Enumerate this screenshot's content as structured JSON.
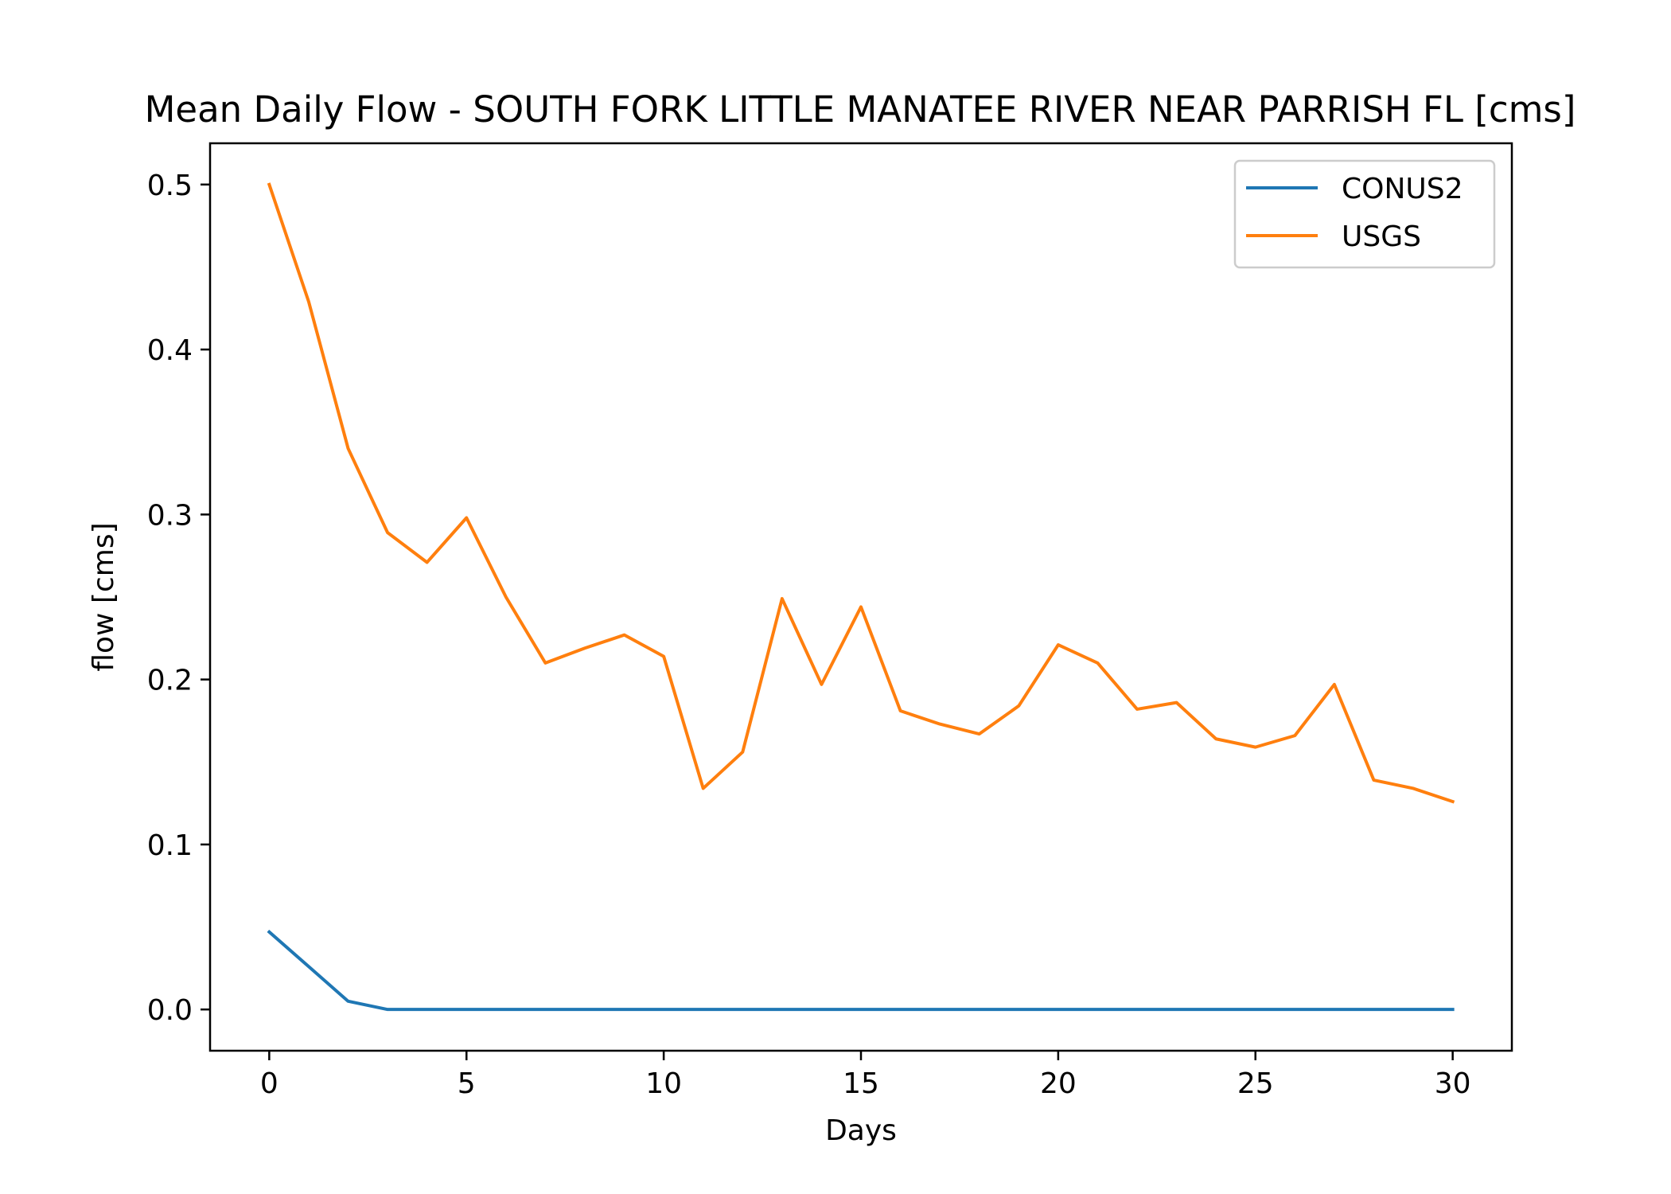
{
  "chart_data": {
    "type": "line",
    "title": "Mean Daily Flow - SOUTH FORK LITTLE MANATEE RIVER NEAR PARRISH FL [cms]",
    "xlabel": "Days",
    "ylabel": "flow [cms]",
    "xlim": [
      -1.5,
      31.5
    ],
    "ylim": [
      -0.025,
      0.525
    ],
    "xticks": [
      0,
      5,
      10,
      15,
      20,
      25,
      30
    ],
    "xtick_labels": [
      "0",
      "5",
      "10",
      "15",
      "20",
      "25",
      "30"
    ],
    "yticks": [
      0.0,
      0.1,
      0.2,
      0.3,
      0.4,
      0.5
    ],
    "ytick_labels": [
      "0.0",
      "0.1",
      "0.2",
      "0.3",
      "0.4",
      "0.5"
    ],
    "grid": false,
    "legend_position": "top-right",
    "x": [
      0,
      1,
      2,
      3,
      4,
      5,
      6,
      7,
      8,
      9,
      10,
      11,
      12,
      13,
      14,
      15,
      16,
      17,
      18,
      19,
      20,
      21,
      22,
      23,
      24,
      25,
      26,
      27,
      28,
      29,
      30
    ],
    "series": [
      {
        "name": "CONUS2",
        "color": "#1f77b4",
        "values": [
          0.047,
          0.026,
          0.005,
          0.0,
          0.0,
          0.0,
          0.0,
          0.0,
          0.0,
          0.0,
          0.0,
          0.0,
          0.0,
          0.0,
          0.0,
          0.0,
          0.0,
          0.0,
          0.0,
          0.0,
          0.0,
          0.0,
          0.0,
          0.0,
          0.0,
          0.0,
          0.0,
          0.0,
          0.0,
          0.0,
          0.0
        ]
      },
      {
        "name": "USGS",
        "color": "#ff7f0e",
        "values": [
          0.5,
          0.429,
          0.34,
          0.289,
          0.271,
          0.298,
          0.25,
          0.21,
          0.219,
          0.227,
          0.214,
          0.134,
          0.156,
          0.249,
          0.197,
          0.244,
          0.181,
          0.173,
          0.167,
          0.184,
          0.221,
          0.21,
          0.182,
          0.186,
          0.164,
          0.159,
          0.166,
          0.197,
          0.139,
          0.134,
          0.126
        ]
      }
    ]
  }
}
